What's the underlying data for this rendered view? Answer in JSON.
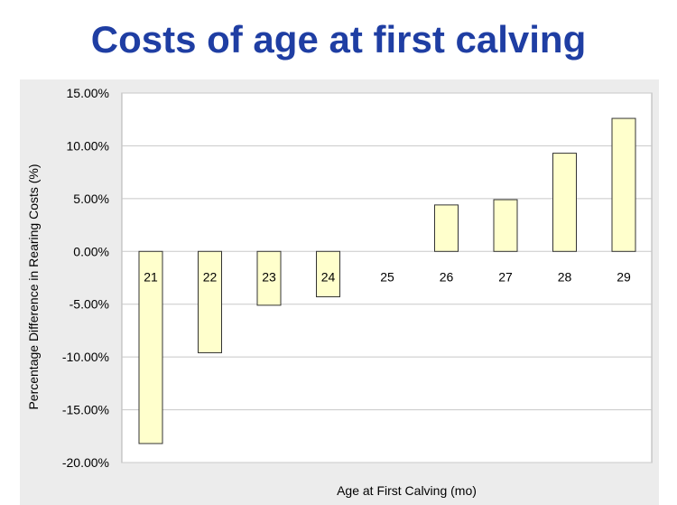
{
  "page": {
    "title": "Costs of age at first calving"
  },
  "colors": {
    "title": "#1f3ea3",
    "bar_fill": "#ffffcc",
    "bar_stroke": "#333333",
    "plot_background": "#ffffff",
    "panel_background": "#ececec",
    "gridline": "#c8c8c8"
  },
  "chart_data": {
    "type": "bar",
    "title": "",
    "xlabel": "Age at First Calving (mo)",
    "ylabel": "Percentage Difference in Rearing Costs (%)",
    "ylim": [
      -20,
      15
    ],
    "yticks": [
      15,
      10,
      5,
      0,
      -5,
      -10,
      -15,
      -20
    ],
    "ytick_labels": [
      "15.00%",
      "10.00%",
      "5.00%",
      "0.00%",
      "-5.00%",
      "-10.00%",
      "-15.00%",
      "-20.00%"
    ],
    "grid": true,
    "legend": "none",
    "categories": [
      "21",
      "22",
      "23",
      "24",
      "25",
      "26",
      "27",
      "28",
      "29"
    ],
    "values": [
      -18.2,
      -9.6,
      -5.1,
      -4.3,
      0,
      4.4,
      4.9,
      9.3,
      12.6
    ]
  }
}
